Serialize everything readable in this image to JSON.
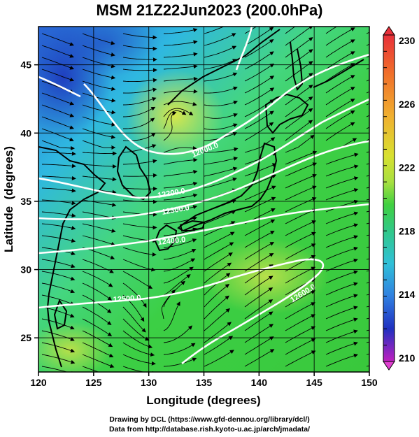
{
  "title": "MSM 21Z22Jun2023 (200.0hPa)",
  "map": {
    "lon_range": [
      120,
      150
    ],
    "lat_range": [
      22.5,
      47.8
    ],
    "x_axis_label": "Longitude (degrees)",
    "y_axis_label": "Latitude  (degrees)",
    "x_ticks": [
      "120",
      "125",
      "130",
      "135",
      "140",
      "145",
      "150"
    ],
    "y_ticks": [
      "25",
      "30",
      "35",
      "40",
      "45"
    ],
    "grid": true,
    "fill_variable_range": [
      210,
      230
    ]
  },
  "colorbar": {
    "labels": [
      "230",
      "226",
      "222",
      "218",
      "214",
      "210"
    ],
    "colors": [
      "#e8303a",
      "#f0702a",
      "#f0b030",
      "#d8e030",
      "#a8e040",
      "#40d040",
      "#30c888",
      "#30c0d8",
      "#3080e0",
      "#2030c0",
      "#c020c0"
    ]
  },
  "contours": [
    {
      "label": "12000.0"
    },
    {
      "label": "12200.0"
    },
    {
      "label": "12300.0"
    },
    {
      "label": "12400.0"
    },
    {
      "label": "12500.0"
    },
    {
      "label": "12600.0"
    }
  ],
  "credits": {
    "line1": "Drawing by DCL (https://www.gfd-dennou.org/library/dcl/)",
    "line2": "Data from http://database.rish.kyoto-u.ac.jp/arch/jmadata/"
  }
}
